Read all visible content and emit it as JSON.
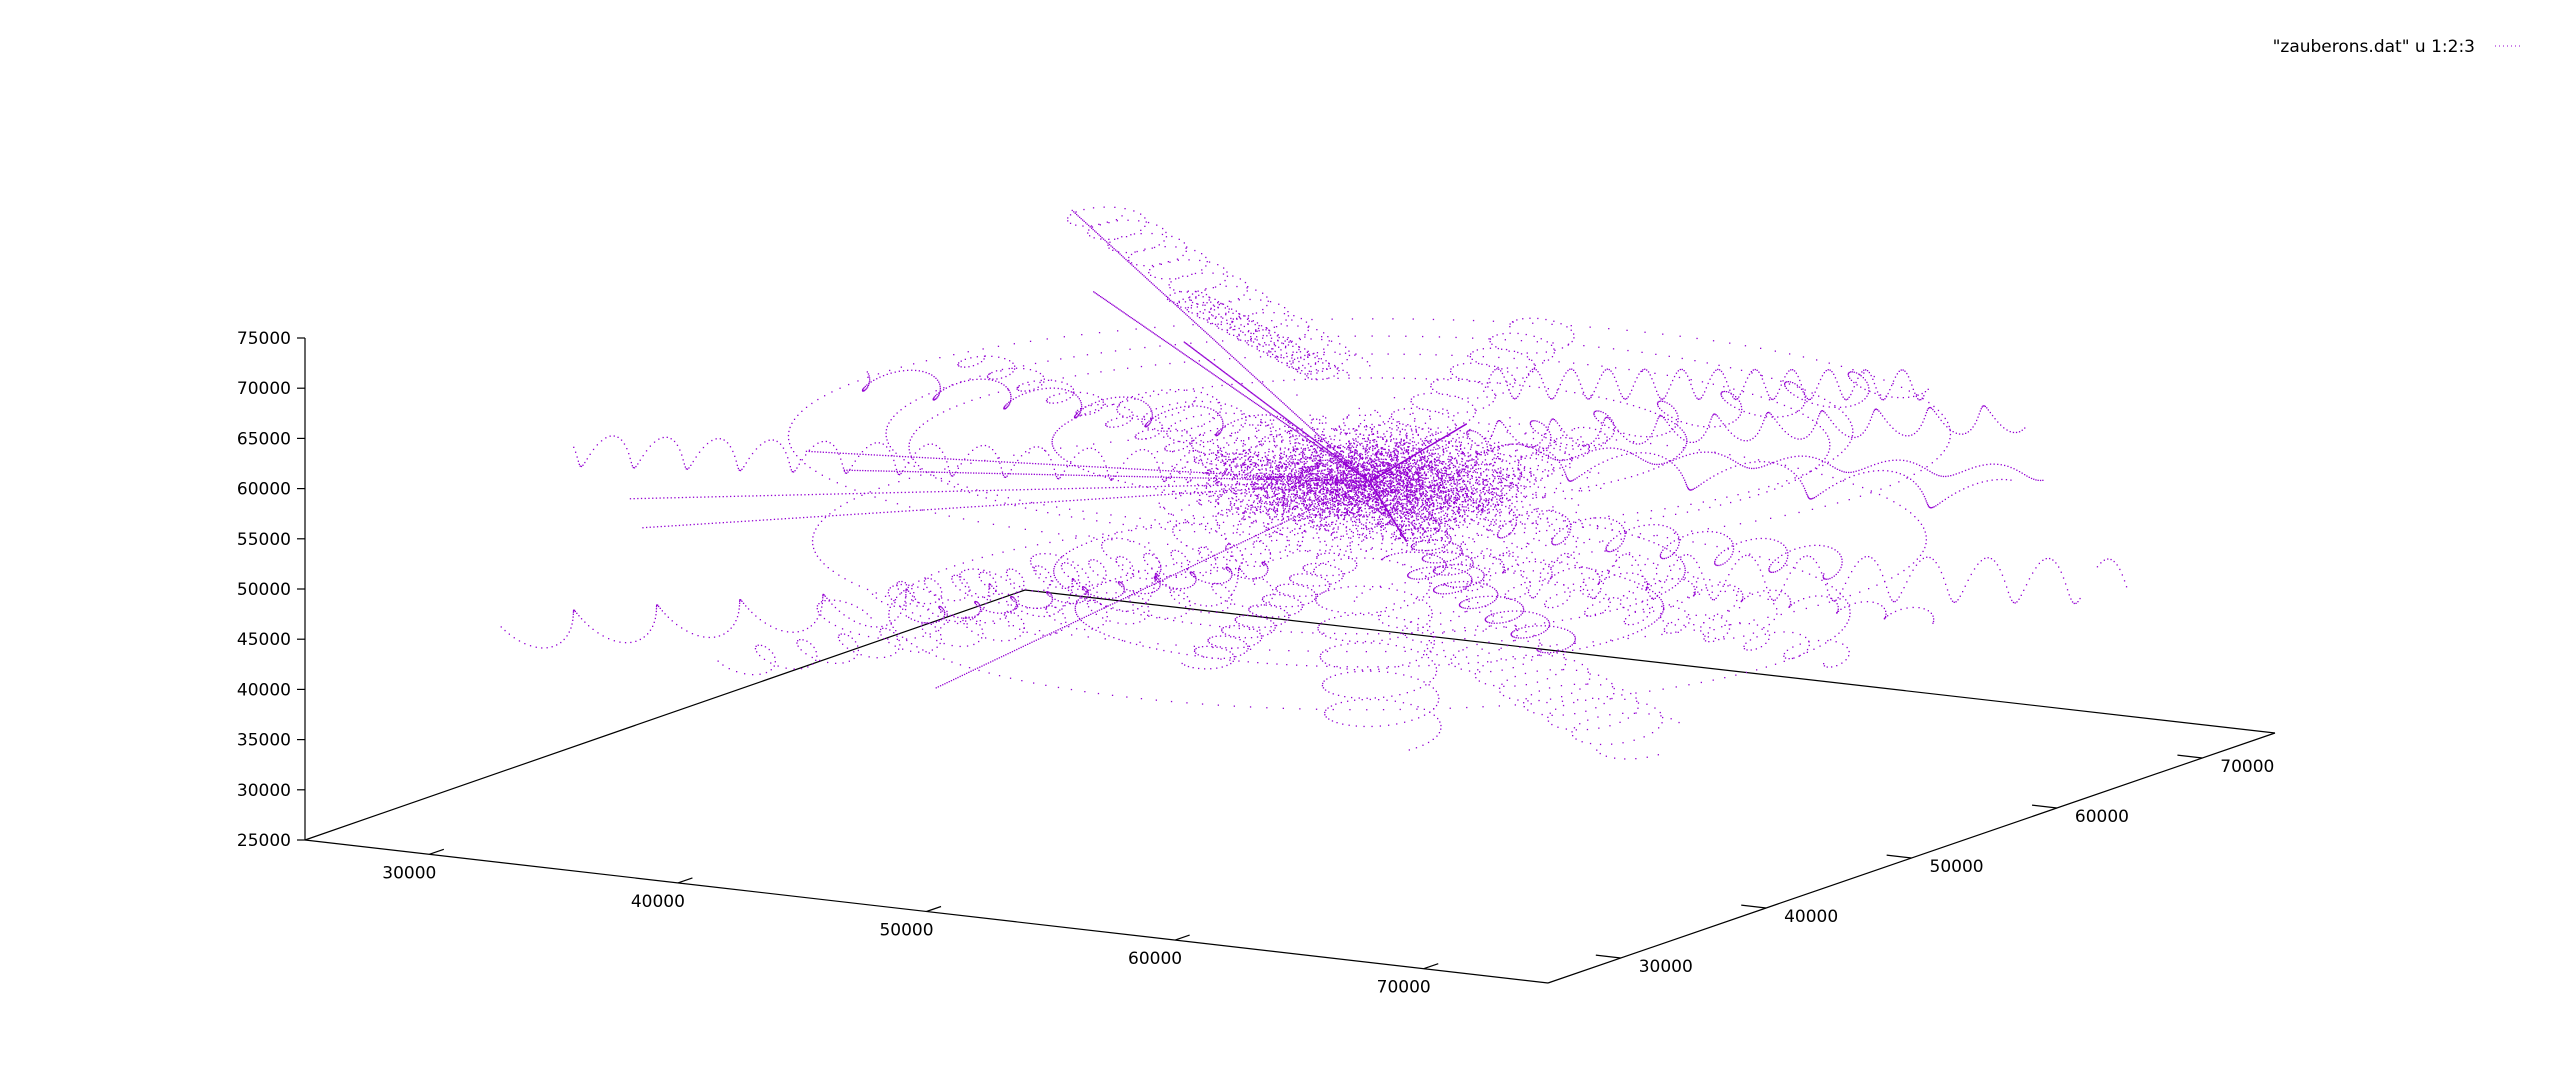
{
  "chart_data": {
    "type": "scatter",
    "plot_style": "dots",
    "view": "3d",
    "legend": {
      "label": "\"zauberons.dat\" u 1:2:3",
      "placement": "top-right"
    },
    "series": [
      {
        "name": "\"zauberons.dat\" u 1:2:3",
        "color": "#9400d3"
      }
    ],
    "axes": {
      "x": {
        "range": [
          25000,
          75000
        ],
        "ticks": [
          30000,
          40000,
          50000,
          60000,
          70000
        ]
      },
      "y": {
        "range": [
          25000,
          75000
        ],
        "ticks": [
          30000,
          40000,
          50000,
          60000,
          70000
        ]
      },
      "z": {
        "range": [
          25000,
          75000
        ],
        "ticks": [
          25000,
          30000,
          35000,
          40000,
          45000,
          50000,
          55000,
          60000,
          65000,
          70000,
          75000
        ]
      }
    },
    "grid": false,
    "x_tick_labels": [
      "30000",
      "40000",
      "50000",
      "60000",
      "70000"
    ],
    "y_tick_labels": [
      "30000",
      "40000",
      "50000",
      "60000",
      "70000"
    ],
    "z_tick_labels": [
      "25000",
      "30000",
      "35000",
      "40000",
      "45000",
      "50000",
      "55000",
      "60000",
      "65000",
      "70000",
      "75000"
    ],
    "description_of_points": "tens of thousands of trajectory sample points (helices, arcs, straight lines) densest around x≈52000, y≈52000, z≈55000"
  }
}
